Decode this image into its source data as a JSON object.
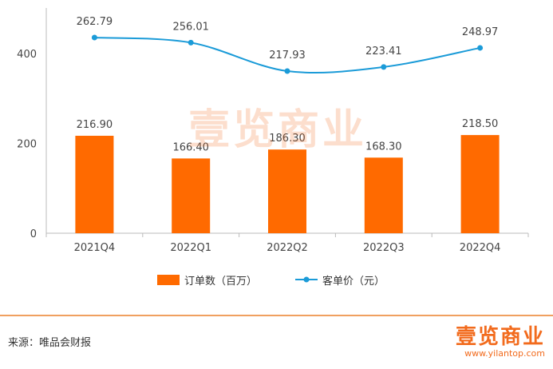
{
  "chart_data": {
    "type": "bar+line",
    "categories": [
      "2021Q4",
      "2022Q1",
      "2022Q2",
      "2022Q3",
      "2022Q4"
    ],
    "series": [
      {
        "name": "订单数（百万）",
        "type": "bar",
        "values": [
          216.9,
          166.4,
          186.3,
          168.3,
          218.5
        ],
        "labels": [
          "216.90",
          "166.40",
          "186.30",
          "168.30",
          "218.50"
        ],
        "color": "#ff6a00"
      },
      {
        "name": "客单价（元）",
        "type": "line",
        "values": [
          262.79,
          256.01,
          217.93,
          223.41,
          248.97
        ],
        "labels": [
          "262.79",
          "256.01",
          "217.93",
          "223.41",
          "248.97"
        ],
        "color": "#1b9bd8"
      }
    ],
    "yticks": [
      "0",
      "200",
      "400"
    ],
    "ytick_values": [
      0,
      200,
      400
    ],
    "ylim": [
      0,
      500
    ],
    "line_display_scale": [
      150,
      300
    ],
    "grid": false,
    "legend_position": "bottom"
  },
  "footer": {
    "source": "来源：唯品会财报",
    "logo": "壹览商业",
    "url": "www.yilantop.com"
  },
  "watermark": "壹览商业"
}
